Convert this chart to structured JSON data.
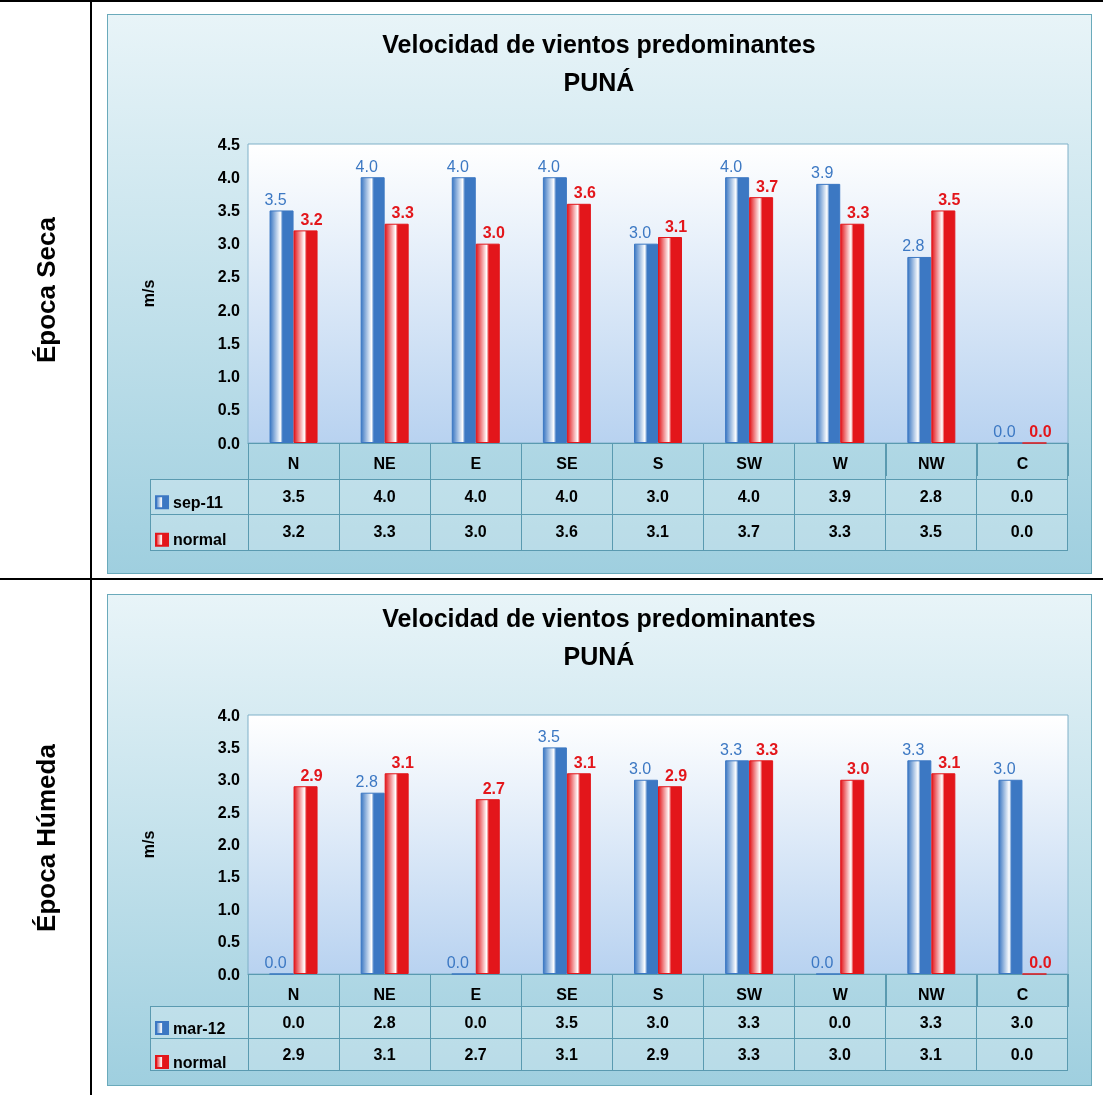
{
  "chart_data": [
    {
      "type": "bar",
      "title": "Velocidad de vientos predominantes",
      "subtitle": "PUNÁ",
      "ylabel": "m/s",
      "annotations": [
        "Época Seca"
      ],
      "categories": [
        "N",
        "NE",
        "E",
        "SE",
        "S",
        "SW",
        "W",
        "NW",
        "C"
      ],
      "series": [
        {
          "name": "sep-11",
          "color": "#3c78c3",
          "values": [
            3.5,
            4.0,
            4.0,
            4.0,
            3.0,
            4.0,
            3.9,
            2.8,
            0.0
          ],
          "value_labels": [
            "3.5",
            "4.0",
            "4.0",
            "4.0",
            "3.0",
            "4.0",
            "3.9",
            "2.8",
            "0.0"
          ]
        },
        {
          "name": "normal",
          "color": "#e3161b",
          "values": [
            3.2,
            3.3,
            3.0,
            3.6,
            3.1,
            3.7,
            3.3,
            3.5,
            0.0
          ],
          "value_labels": [
            "3.2",
            "3.3",
            "3.0",
            "3.6",
            "3.1",
            "3.7",
            "3.3",
            "3.5",
            "0.0"
          ]
        }
      ],
      "ylim": [
        0,
        4.5
      ],
      "yticks": [
        {
          "value": 0,
          "label": "0.0"
        },
        {
          "value": 0.5,
          "label": "0.5"
        },
        {
          "value": 1,
          "label": "1.0"
        },
        {
          "value": 1.5,
          "label": "1.5"
        },
        {
          "value": 2,
          "label": "2.0"
        },
        {
          "value": 2.5,
          "label": "2.5"
        },
        {
          "value": 3,
          "label": "3.0"
        },
        {
          "value": 3.5,
          "label": "3.5"
        },
        {
          "value": 4,
          "label": "4.0"
        },
        {
          "value": 4.5,
          "label": "4.5"
        }
      ],
      "grid": false,
      "legend": "bottom left"
    },
    {
      "type": "bar",
      "title": "Velocidad de vientos predominantes",
      "subtitle": "PUNÁ",
      "ylabel": "m/s",
      "annotations": [
        "Época Húmeda"
      ],
      "categories": [
        "N",
        "NE",
        "E",
        "SE",
        "S",
        "SW",
        "W",
        "NW",
        "C"
      ],
      "series": [
        {
          "name": "mar-12",
          "color": "#3c78c3",
          "values": [
            0.0,
            2.8,
            0.0,
            3.5,
            3.0,
            3.3,
            0.0,
            3.3,
            3.0
          ],
          "value_labels": [
            "0.0",
            "2.8",
            "0.0",
            "3.5",
            "3.0",
            "3.3",
            "0.0",
            "3.3",
            "3.0"
          ]
        },
        {
          "name": "normal",
          "color": "#e3161b",
          "values": [
            2.9,
            3.1,
            2.7,
            3.1,
            2.9,
            3.3,
            3.0,
            3.1,
            0.0
          ],
          "value_labels": [
            "2.9",
            "3.1",
            "2.7",
            "3.1",
            "2.9",
            "3.3",
            "3.0",
            "3.1",
            "0.0"
          ]
        }
      ],
      "ylim": [
        0,
        4
      ],
      "yticks": [
        {
          "value": 0,
          "label": "0.0"
        },
        {
          "value": 0.5,
          "label": "0.5"
        },
        {
          "value": 1,
          "label": "1.0"
        },
        {
          "value": 1.5,
          "label": "1.5"
        },
        {
          "value": 2,
          "label": "2.0"
        },
        {
          "value": 2.5,
          "label": "2.5"
        },
        {
          "value": 3,
          "label": "3.0"
        },
        {
          "value": 3.5,
          "label": "3.5"
        },
        {
          "value": 4,
          "label": "4.0"
        }
      ],
      "grid": false,
      "legend": "bottom left"
    }
  ]
}
